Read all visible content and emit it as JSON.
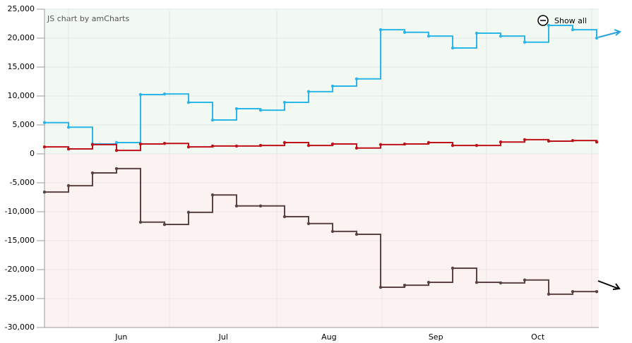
{
  "chart_data": {
    "type": "step",
    "credit": "JS chart by amCharts",
    "zoom_button": "Show all",
    "categories": [
      null,
      null,
      null,
      null,
      null,
      null,
      null,
      null,
      null,
      null,
      null,
      null,
      null,
      null,
      null,
      null,
      null,
      null,
      null,
      null,
      null,
      null,
      null,
      null
    ],
    "xlim": [
      0,
      23
    ],
    "xticks": [
      {
        "value": 3.2,
        "label": "Jun"
      },
      {
        "value": 7.45,
        "label": "Jul"
      },
      {
        "value": 11.85,
        "label": "Aug"
      },
      {
        "value": 16.3,
        "label": "Sep"
      },
      {
        "value": 20.55,
        "label": "Oct"
      }
    ],
    "ylim": [
      -30000,
      25000
    ],
    "yticks": [
      {
        "value": -30000,
        "label": "-30,000"
      },
      {
        "value": -25000,
        "label": "-25,000"
      },
      {
        "value": -20000,
        "label": "-20,000"
      },
      {
        "value": -15000,
        "label": "-15,000"
      },
      {
        "value": -10000,
        "label": "-10,000"
      },
      {
        "value": -5000,
        "label": "-5,000"
      },
      0,
      {
        "value": 5000,
        "label": "5,000"
      },
      {
        "value": 10000,
        "label": "10,000"
      },
      {
        "value": 15000,
        "label": "15,000"
      },
      {
        "value": 20000,
        "label": "20,000"
      },
      {
        "value": 25000,
        "label": "25,000"
      }
    ],
    "grid": true,
    "series": [
      {
        "color": "#29b6e8",
        "values": [
          5400,
          4600,
          1700,
          1950,
          10250,
          10350,
          8900,
          5850,
          7800,
          7550,
          8900,
          10750,
          11700,
          12950,
          21450,
          21000,
          20350,
          18300,
          20850,
          20350,
          19300,
          22200,
          21450,
          20000
        ]
      },
      {
        "color": "#c0111a",
        "values": [
          1200,
          850,
          1600,
          600,
          1700,
          1800,
          1200,
          1350,
          1350,
          1450,
          1950,
          1450,
          1700,
          1000,
          1600,
          1700,
          1950,
          1450,
          1450,
          2050,
          2450,
          2200,
          2300,
          2050
        ]
      },
      {
        "color": "#5b4343",
        "values": [
          -6600,
          -5500,
          -3300,
          -2550,
          -11800,
          -12200,
          -10100,
          -7100,
          -9000,
          -9000,
          -10850,
          -12050,
          -13400,
          -13900,
          -23050,
          -22700,
          -22200,
          -19750,
          -22200,
          -22300,
          -21800,
          -24250,
          -23800,
          -23800
        ]
      }
    ]
  }
}
